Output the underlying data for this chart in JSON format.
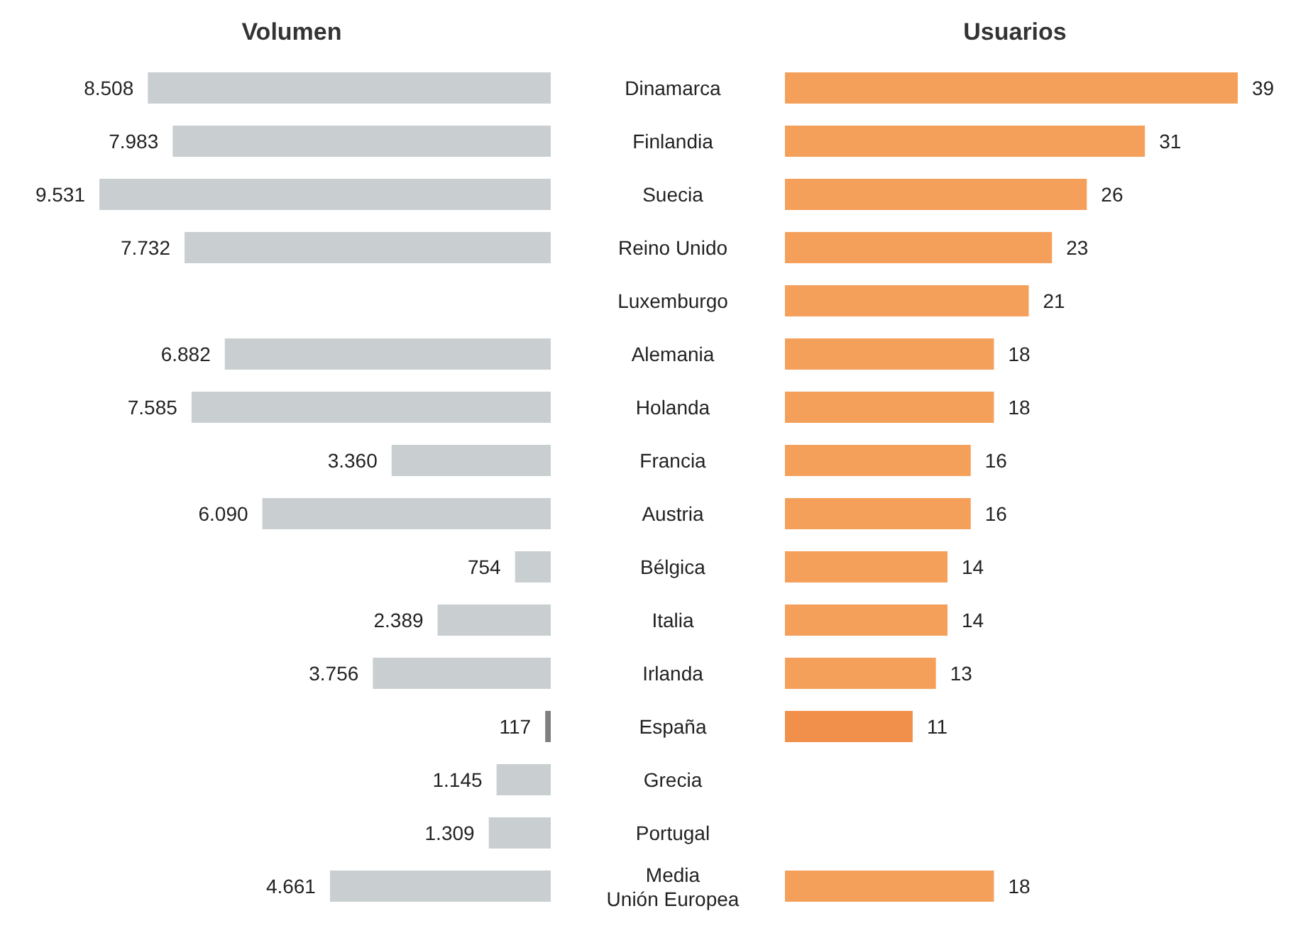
{
  "chart_data": [
    {
      "type": "bar",
      "orientation": "horizontal",
      "title": "Volumen",
      "categories": [
        "Dinamarca",
        "Finlandia",
        "Suecia",
        "Reino Unido",
        "Luxemburgo",
        "Alemania",
        "Holanda",
        "Francia",
        "Austria",
        "Bélgica",
        "Italia",
        "Irlanda",
        "España",
        "Grecia",
        "Portugal",
        "Media Unión Europea"
      ],
      "values": [
        8508,
        7983,
        9531,
        7732,
        null,
        6882,
        7585,
        3360,
        6090,
        754,
        2389,
        3756,
        117,
        1145,
        1309,
        4661
      ],
      "value_labels": [
        "8.508",
        "7.983",
        "9.531",
        "7.732",
        null,
        "6.882",
        "7.585",
        "3.360",
        "6.090",
        "754",
        "2.389",
        "3.756",
        "117",
        "1.145",
        "1.309",
        "4.661"
      ],
      "colors": [
        "#c9cfd1",
        "#c9cfd1",
        "#c9cfd1",
        "#c9cfd1",
        "#c9cfd1",
        "#c9cfd1",
        "#c9cfd1",
        "#c9cfd1",
        "#c9cfd1",
        "#c9cfd1",
        "#c9cfd1",
        "#c9cfd1",
        "#7d7f80",
        "#c9cfd1",
        "#c9cfd1",
        "#c9cfd1"
      ],
      "tick_labels": "y"
    },
    {
      "type": "bar",
      "orientation": "horizontal",
      "title": "Usuarios",
      "categories": [
        null,
        null,
        null,
        null,
        null,
        null,
        null,
        null,
        null,
        null,
        null,
        null,
        null,
        null,
        null,
        null
      ],
      "values": [
        39,
        31,
        26,
        23,
        21,
        18,
        18,
        16,
        16,
        14,
        14,
        13,
        11,
        null,
        null,
        18
      ],
      "colors": [
        "#f5a05a",
        "#f5a05a",
        "#f5a05a",
        "#f5a05a",
        "#f5a05a",
        "#f5a05a",
        "#f5a05a",
        "#f5a05a",
        "#f5a05a",
        "#f5a05a",
        "#f5a05a",
        "#f5a05a",
        "#f0904a",
        "#f5a05a",
        "#f5a05a",
        "#f5a05a"
      ],
      "data_labels": true,
      "tick_labels": false
    }
  ]
}
